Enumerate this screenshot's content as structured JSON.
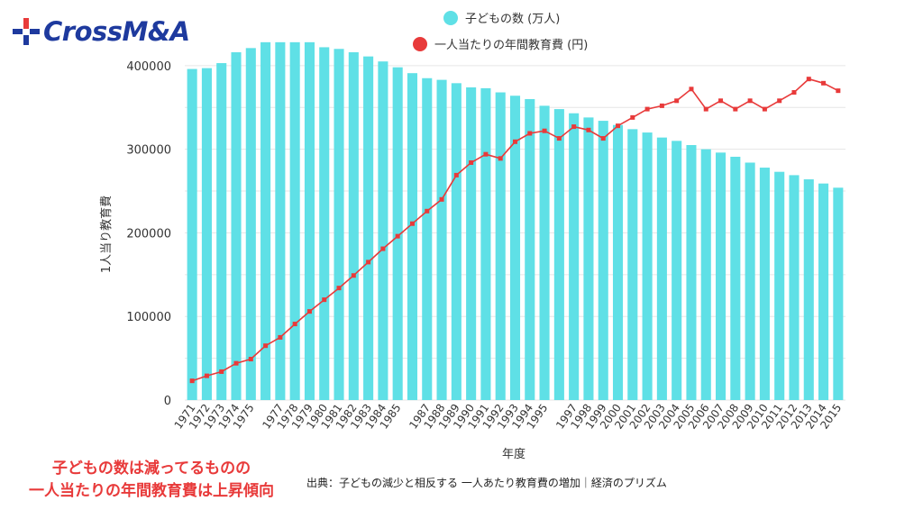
{
  "brand": {
    "logo_text_main": "CrossM",
    "logo_text_accent": "&A",
    "logo_text": "CrossM&A",
    "logo_icon": "cross-plus-icon"
  },
  "caption": {
    "source": "出典：子どもの減少と相反する 一人あたり教育費の増加｜経済のプリズム",
    "conclusion_line1": "子どもの数は減ってるものの",
    "conclusion_line2": "一人当たりの年間教育費は上昇傾向"
  },
  "colors": {
    "bars": "#5fe0e6",
    "line": "#e83a3a",
    "conclusion": "#e83a3a",
    "logo": "#1e3a9e",
    "grid": "#e6e6e6"
  },
  "chart_data": {
    "type": "bar",
    "title": "",
    "xlabel": "年度",
    "ylabel": "1人当り教育費",
    "ylim": [
      0,
      430000
    ],
    "yticks": [
      0,
      100000,
      200000,
      300000,
      400000
    ],
    "grid": true,
    "legend": "top-center",
    "x": [
      "1971",
      "1972",
      "1973",
      "1974",
      "1975",
      "1976",
      "1977",
      "1978",
      "1979",
      "1980",
      "1981",
      "1982",
      "1983",
      "1984",
      "1985",
      "1986",
      "1987",
      "1988",
      "1989",
      "1990",
      "1991",
      "1992",
      "1993",
      "1994",
      "1995",
      "1996",
      "1997",
      "1998",
      "1999",
      "2000",
      "2001",
      "2002",
      "2003",
      "2004",
      "2005",
      "2006",
      "2007",
      "2008",
      "2009",
      "2010",
      "2011",
      "2012",
      "2013",
      "2014",
      "2015"
    ],
    "tick_labels": [
      "1971",
      "1972",
      "1973",
      "1974",
      "1975",
      "",
      "1977",
      "1978",
      "1979",
      "1980",
      "1981",
      "1982",
      "1983",
      "1984",
      "1985",
      "",
      "1987",
      "1988",
      "1989",
      "1990",
      "1991",
      "1992",
      "1993",
      "1994",
      "1995",
      "",
      "1997",
      "1998",
      "1999",
      "2000",
      "2001",
      "2002",
      "2003",
      "2004",
      "2005",
      "2006",
      "2007",
      "2008",
      "2009",
      "2010",
      "2011",
      "2012",
      "2013",
      "2014",
      "2015"
    ],
    "series": [
      {
        "name": "子どもの数 (万人)",
        "type": "bar",
        "color": "#5fe0e6",
        "values": [
          396000,
          397000,
          403000,
          416000,
          421000,
          428000,
          428000,
          428000,
          428000,
          422000,
          420000,
          416000,
          411000,
          405000,
          398000,
          391000,
          385000,
          383000,
          379000,
          374000,
          373000,
          368000,
          364000,
          360000,
          352000,
          348000,
          343000,
          338000,
          334000,
          329000,
          324000,
          320000,
          314000,
          310000,
          305000,
          300000,
          296000,
          291000,
          284000,
          278000,
          273000,
          269000,
          264000,
          259000,
          254000
        ]
      },
      {
        "name": "一人当たりの年間教育費 (円)",
        "type": "line",
        "color": "#e83a3a",
        "values": [
          23000,
          29000,
          34000,
          44000,
          49000,
          65000,
          75000,
          91000,
          106000,
          120000,
          134000,
          149000,
          165000,
          181000,
          196000,
          211000,
          226000,
          240000,
          269000,
          284000,
          294000,
          289000,
          309000,
          319000,
          322000,
          313000,
          327000,
          323000,
          313000,
          328000,
          338000,
          348000,
          352000,
          358000,
          372000,
          348000,
          358000,
          348000,
          358000,
          348000,
          358000,
          368000,
          384000,
          379000,
          370000
        ]
      }
    ]
  }
}
